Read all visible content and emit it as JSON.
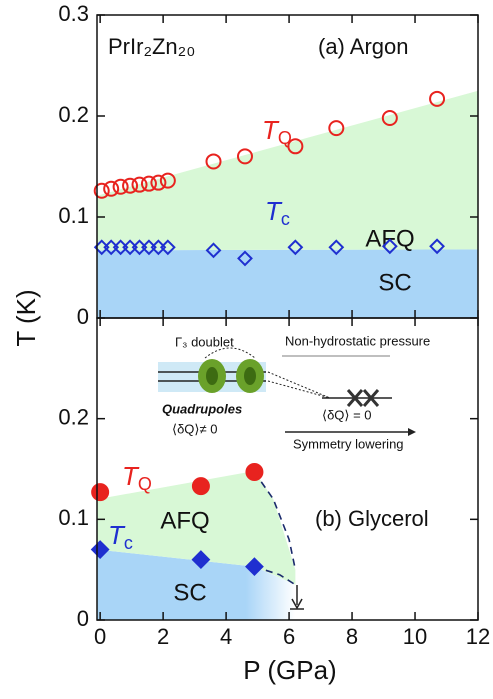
{
  "chart_data": [
    {
      "type": "scatter",
      "label": "(a) Argon",
      "compound": "PrIr₂Zn₂₀",
      "ylabel": "T (K)",
      "xlim": [
        -0.1,
        12
      ],
      "ylim": [
        0,
        0.3
      ],
      "xticks": [
        0,
        2,
        4,
        6,
        8,
        10,
        12
      ],
      "yticks": [
        0,
        0.1,
        0.2,
        0.3
      ],
      "regions": [
        {
          "label": "SC",
          "color": "#a9d5f7",
          "x": [
            -0.1,
            12
          ],
          "lower": [
            0,
            0
          ],
          "upper": [
            0.067,
            0.068
          ]
        },
        {
          "label": "AFQ",
          "color": "#d8f8d6",
          "x": [
            -0.1,
            12
          ],
          "lower": [
            0.067,
            0.068
          ],
          "upper": [
            0.121,
            0.225
          ]
        }
      ],
      "series": [
        {
          "name": "T",
          "sub": "Q",
          "color": "#e8231f",
          "marker": "circle",
          "filled": false,
          "x": [
            0.05,
            0.35,
            0.65,
            0.95,
            1.25,
            1.55,
            1.85,
            2.15,
            3.6,
            4.6,
            6.2,
            7.5,
            9.2,
            10.7
          ],
          "values": [
            0.126,
            0.128,
            0.13,
            0.131,
            0.132,
            0.133,
            0.134,
            0.136,
            0.155,
            0.16,
            0.17,
            0.188,
            0.198,
            0.217
          ]
        },
        {
          "name": "T",
          "sub": "c",
          "color": "#1f2fd0",
          "marker": "diamond",
          "filled": false,
          "x": [
            0.05,
            0.35,
            0.65,
            0.95,
            1.25,
            1.55,
            1.85,
            2.15,
            3.6,
            4.6,
            6.2,
            7.5,
            9.2,
            10.7
          ],
          "values": [
            0.07,
            0.07,
            0.07,
            0.07,
            0.07,
            0.07,
            0.07,
            0.07,
            0.067,
            0.059,
            0.07,
            0.07,
            0.071,
            0.071
          ]
        }
      ]
    },
    {
      "type": "scatter",
      "label": "(b) Glycerol",
      "xlabel": "P (GPa)",
      "xlim": [
        -0.1,
        12
      ],
      "ylim": [
        0,
        0.3
      ],
      "xticks": [
        0,
        2,
        4,
        6,
        8,
        10,
        12
      ],
      "yticks": [
        0,
        0.1,
        0.2
      ],
      "regions": [
        {
          "label": "SC",
          "color": "url(#scfade)",
          "x": [
            -0.1,
            4.9,
            6.2
          ],
          "lower": [
            0,
            0,
            0
          ],
          "upper": [
            0.07,
            0.053,
            0.035
          ]
        },
        {
          "label": "AFQ",
          "color": "#d8f8d6",
          "x": [
            -0.1,
            4.9,
            5.5,
            6.2
          ],
          "lower": [
            0.07,
            0.053,
            0.045,
            0.035
          ],
          "upper": [
            0.12,
            0.148,
            0.12,
            0.05
          ]
        }
      ],
      "boundaries": [
        {
          "x": [
            4.9,
            5.5,
            6.0,
            6.2
          ],
          "values": [
            0.147,
            0.12,
            0.08,
            0.05
          ]
        },
        {
          "x": [
            4.9,
            5.7,
            6.2
          ],
          "values": [
            0.053,
            0.045,
            0.035
          ]
        }
      ],
      "series": [
        {
          "name": "T",
          "sub": "Q",
          "color": "#e8231f",
          "marker": "circle",
          "filled": true,
          "x": [
            0,
            3.2,
            4.9
          ],
          "values": [
            0.127,
            0.133,
            0.147
          ]
        },
        {
          "name": "T",
          "sub": "c",
          "color": "#1f2fd0",
          "marker": "diamond",
          "filled": true,
          "x": [
            0,
            3.2,
            4.9
          ],
          "values": [
            0.07,
            0.06,
            0.053
          ]
        }
      ],
      "inset": {
        "doublet": "Γ₃ doublet",
        "pressure": "Non-hydrostatic pressure",
        "quadrupoles": "Quadrupoles",
        "nonzero": "⟨δQ⟩≠ 0",
        "zero": "⟨δQ⟩ = 0",
        "lowering": "Symmetry lowering"
      }
    }
  ]
}
